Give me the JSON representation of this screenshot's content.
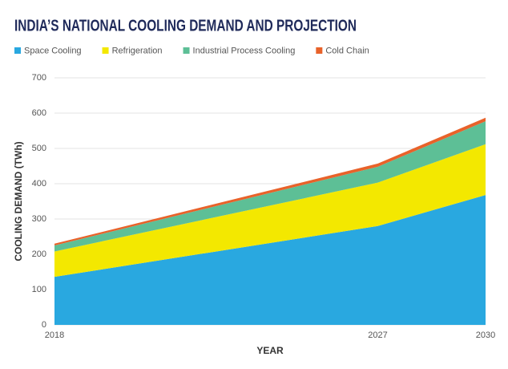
{
  "chart_data": {
    "type": "stacked-area",
    "title": "INDIA’S NATIONAL COOLING DEMAND AND PROJECTION",
    "x_label": "YEAR",
    "y_label": "COOLING DEMAND (TWh)",
    "x": [
      2018,
      2027,
      2030
    ],
    "series": [
      {
        "name": "Space Cooling",
        "color": "#29a8e0",
        "values": [
          136,
          280,
          368
        ]
      },
      {
        "name": "Refrigeration",
        "color": "#f3e800",
        "values": [
          72,
          123,
          144
        ]
      },
      {
        "name": "Industrial Process Cooling",
        "color": "#5dbf96",
        "values": [
          17,
          45,
          65
        ]
      },
      {
        "name": "Cold Chain",
        "color": "#e8622a",
        "values": [
          5,
          9,
          10
        ]
      }
    ],
    "xlim": [
      2018,
      2030
    ],
    "xticks": [
      2018,
      2027,
      2030
    ],
    "ylim": [
      0,
      700
    ],
    "yticks": [
      0,
      100,
      200,
      300,
      400,
      500,
      600,
      700
    ],
    "grid": true,
    "legend": "top"
  }
}
